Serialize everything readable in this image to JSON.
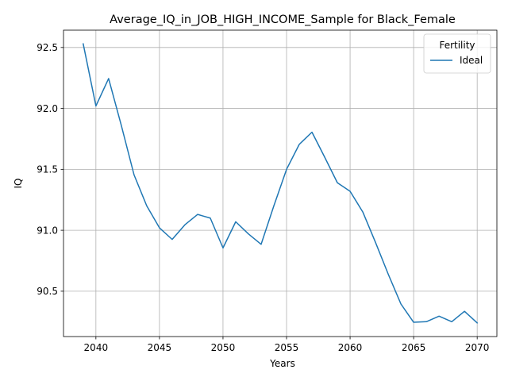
{
  "chart_data": {
    "type": "line",
    "title": "Average_IQ_in_JOB_HIGH_INCOME_Sample for Black_Female",
    "xlabel": "Years",
    "ylabel": "IQ",
    "xlim": [
      2037.45,
      2071.55
    ],
    "ylim": [
      90.128,
      92.642
    ],
    "xticks": [
      2040,
      2045,
      2050,
      2055,
      2060,
      2065,
      2070
    ],
    "yticks": [
      90.5,
      91.0,
      91.5,
      92.0,
      92.5
    ],
    "xtick_labels": [
      "2040",
      "2045",
      "2050",
      "2055",
      "2060",
      "2065",
      "2070"
    ],
    "ytick_labels": [
      "90.5",
      "91.0",
      "91.5",
      "92.0",
      "92.5"
    ],
    "grid": true,
    "legend": {
      "title": "Fertility",
      "position": "upper right"
    },
    "series": [
      {
        "name": "Ideal",
        "color": "#1f77b4",
        "x": [
          2039,
          2040,
          2041,
          2042,
          2043,
          2044,
          2045,
          2046,
          2047,
          2048,
          2049,
          2050,
          2051,
          2052,
          2053,
          2054,
          2055,
          2056,
          2057,
          2058,
          2059,
          2060,
          2061,
          2062,
          2063,
          2064,
          2065,
          2066,
          2067,
          2068,
          2069,
          2070
        ],
        "y": [
          92.53,
          92.02,
          92.245,
          91.86,
          91.455,
          91.2,
          91.02,
          90.925,
          91.045,
          91.13,
          91.1,
          90.855,
          91.07,
          90.97,
          90.885,
          91.2,
          91.5,
          91.705,
          91.805,
          91.6,
          91.39,
          91.32,
          91.15,
          90.9,
          90.64,
          90.395,
          90.245,
          90.25,
          90.295,
          90.25,
          90.335,
          90.24
        ]
      }
    ]
  }
}
